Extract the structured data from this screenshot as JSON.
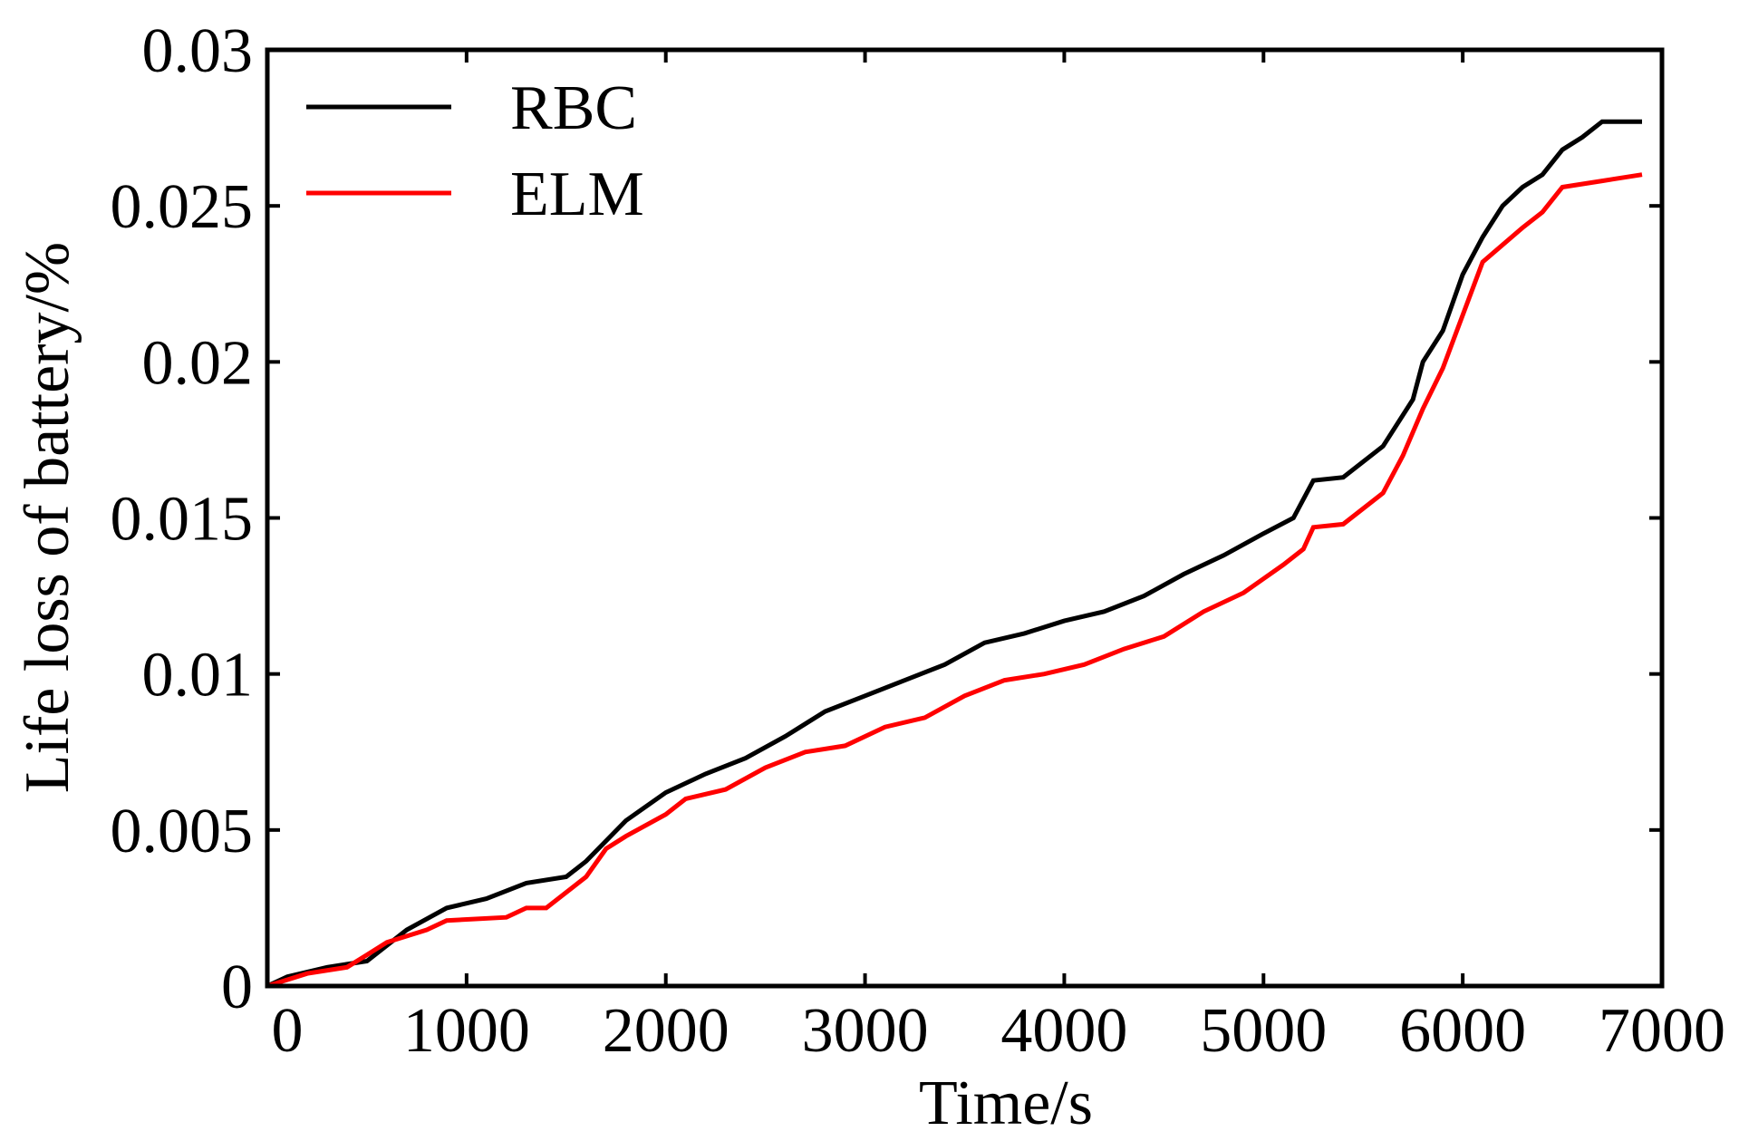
{
  "chart_data": {
    "type": "line",
    "xlabel": "Time/s",
    "ylabel": "Life loss of battery/%",
    "xlim": [
      0,
      7000
    ],
    "xticks": [
      0,
      1000,
      2000,
      3000,
      4000,
      5000,
      6000,
      7000
    ],
    "ylim": [
      0,
      0.03
    ],
    "yticks": [
      0,
      0.005,
      0.01,
      0.015,
      0.02,
      0.025,
      0.03
    ],
    "legend": "upper-left",
    "series": [
      {
        "name": "RBC",
        "color": "#000000",
        "x": [
          0,
          100,
          300,
          500,
          700,
          900,
          1100,
          1300,
          1500,
          1600,
          1800,
          2000,
          2200,
          2400,
          2600,
          2800,
          3000,
          3200,
          3400,
          3600,
          3800,
          4000,
          4200,
          4400,
          4600,
          4800,
          5000,
          5150,
          5250,
          5400,
          5600,
          5750,
          5800,
          5900,
          6000,
          6100,
          6200,
          6300,
          6400,
          6500,
          6600,
          6700,
          6900
        ],
        "values": [
          0,
          0.0003,
          0.0006,
          0.0008,
          0.0018,
          0.0025,
          0.0028,
          0.0033,
          0.0035,
          0.004,
          0.0053,
          0.0062,
          0.0068,
          0.0073,
          0.008,
          0.0088,
          0.0093,
          0.0098,
          0.0103,
          0.011,
          0.0113,
          0.0117,
          0.012,
          0.0125,
          0.0132,
          0.0138,
          0.0145,
          0.015,
          0.0162,
          0.0163,
          0.0173,
          0.0188,
          0.02,
          0.021,
          0.0228,
          0.024,
          0.025,
          0.0256,
          0.026,
          0.0268,
          0.0272,
          0.0277,
          0.0277
        ]
      },
      {
        "name": "ELM",
        "color": "#ff0000",
        "x": [
          0,
          200,
          400,
          500,
          600,
          800,
          900,
          1200,
          1300,
          1400,
          1600,
          1700,
          1800,
          2000,
          2100,
          2300,
          2500,
          2700,
          2900,
          3100,
          3300,
          3500,
          3700,
          3900,
          4100,
          4300,
          4500,
          4700,
          4900,
          5100,
          5200,
          5250,
          5400,
          5600,
          5700,
          5800,
          5900,
          6000,
          6100,
          6300,
          6400,
          6500,
          6700,
          6900
        ],
        "values": [
          0,
          0.0004,
          0.0006,
          0.001,
          0.0014,
          0.0018,
          0.0021,
          0.0022,
          0.0025,
          0.0025,
          0.0035,
          0.0044,
          0.0048,
          0.0055,
          0.006,
          0.0063,
          0.007,
          0.0075,
          0.0077,
          0.0083,
          0.0086,
          0.0093,
          0.0098,
          0.01,
          0.0103,
          0.0108,
          0.0112,
          0.012,
          0.0126,
          0.0135,
          0.014,
          0.0147,
          0.0148,
          0.0158,
          0.017,
          0.0185,
          0.0198,
          0.0215,
          0.0232,
          0.0243,
          0.0248,
          0.0256,
          0.0258,
          0.026
        ]
      }
    ]
  }
}
